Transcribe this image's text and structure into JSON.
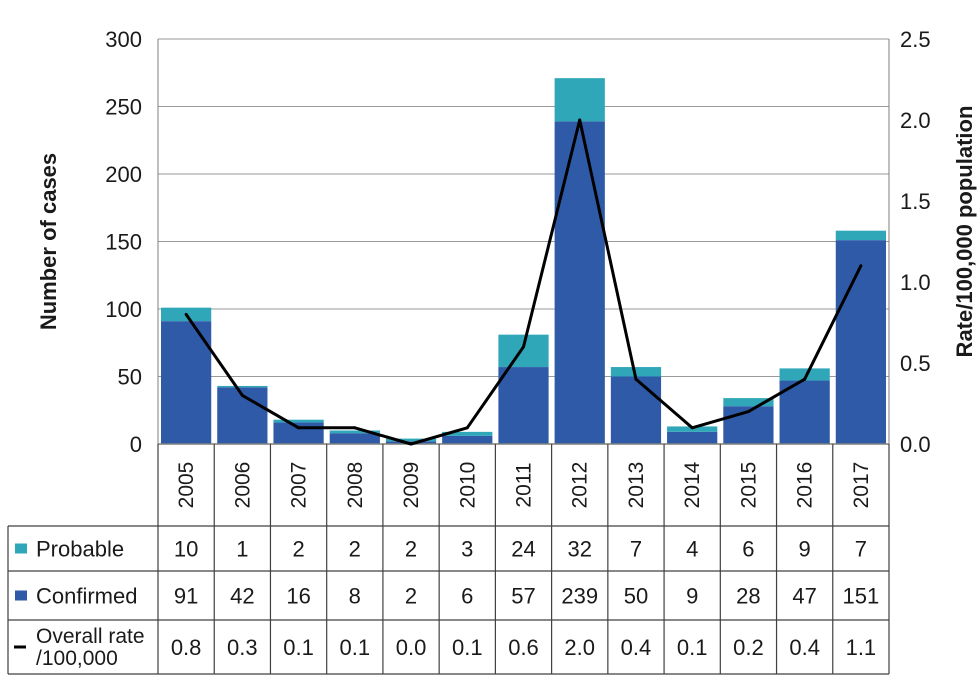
{
  "chart_data": {
    "type": "bar",
    "stacked": true,
    "categories": [
      "2005",
      "2006",
      "2007",
      "2008",
      "2009",
      "2010",
      "2011",
      "2012",
      "2013",
      "2014",
      "2015",
      "2016",
      "2017"
    ],
    "series": [
      {
        "name": "Confirmed",
        "type": "bar",
        "axis": "left",
        "color": "#2f5aa8",
        "values": [
          91,
          42,
          16,
          8,
          2,
          6,
          57,
          239,
          50,
          9,
          28,
          47,
          151
        ],
        "labels": [
          "91",
          "42",
          "16",
          "8",
          "2",
          "6",
          "57",
          "239",
          "50",
          "9",
          "28",
          "47",
          "151"
        ]
      },
      {
        "name": "Probable",
        "type": "bar",
        "axis": "left",
        "color": "#2fa7b8",
        "values": [
          10,
          1,
          2,
          2,
          2,
          3,
          24,
          32,
          7,
          4,
          6,
          9,
          7
        ],
        "labels": [
          "10",
          "1",
          "2",
          "2",
          "2",
          "3",
          "24",
          "32",
          "7",
          "4",
          "6",
          "9",
          "7"
        ]
      },
      {
        "name": "Overall rate\n/100,000",
        "type": "line",
        "axis": "right",
        "color": "#000000",
        "values": [
          0.8,
          0.3,
          0.1,
          0.1,
          0.0,
          0.1,
          0.6,
          2.0,
          0.4,
          0.1,
          0.2,
          0.4,
          1.1
        ],
        "labels": [
          "0.8",
          "0.3",
          "0.1",
          "0.1",
          "0.0",
          "0.1",
          "0.6",
          "2.0",
          "0.4",
          "0.1",
          "0.2",
          "0.4",
          "1.1"
        ]
      }
    ],
    "ylabel": "Number of cases",
    "ylim": [
      0,
      300
    ],
    "yticks": [
      "0",
      "50",
      "100",
      "150",
      "200",
      "250",
      "300"
    ],
    "y2label": "Rate/100,000 population",
    "y2lim": [
      0,
      2.5
    ],
    "y2ticks": [
      "0.0",
      "0.5",
      "1.0",
      "1.5",
      "2.0",
      "2.5"
    ],
    "grid": true,
    "legend": "data-table"
  }
}
